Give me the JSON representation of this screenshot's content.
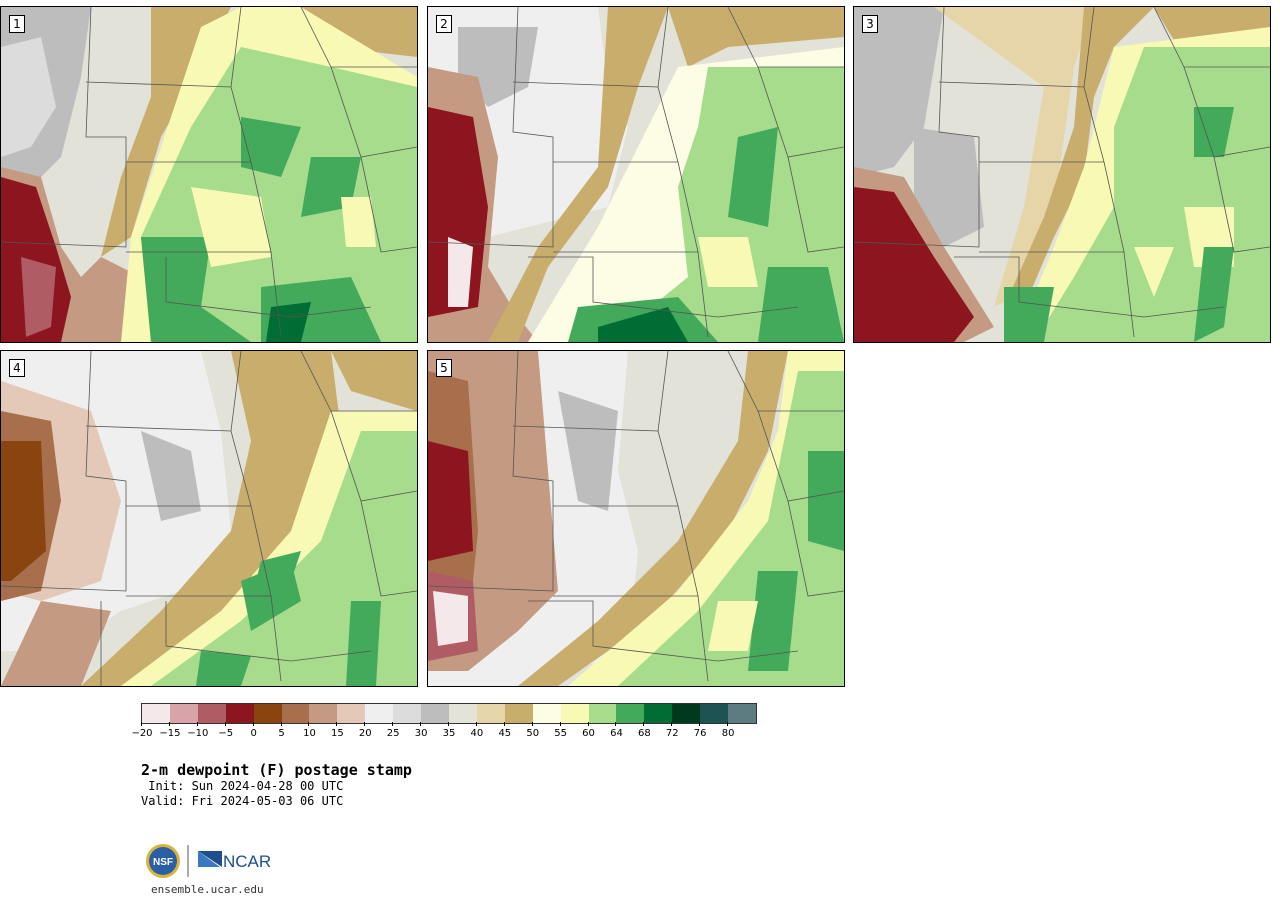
{
  "panels": [
    {
      "label": "1"
    },
    {
      "label": "2"
    },
    {
      "label": "3"
    },
    {
      "label": "4"
    },
    {
      "label": "5"
    }
  ],
  "colorbar": {
    "colors": [
      "#f5e8ea",
      "#d9a3aa",
      "#b05c65",
      "#8c1520",
      "#8a4410",
      "#a86f4c",
      "#c59a82",
      "#e4c9b8",
      "#efefef",
      "#dcdcdc",
      "#bdbdbd",
      "#e3e3d8",
      "#e6d5a8",
      "#c9ad6c",
      "#fdfde6",
      "#f7f9b4",
      "#a6dc8c",
      "#43a95b",
      "#006d35",
      "#00391d",
      "#1d5352",
      "#5d7c82"
    ],
    "tick_labels": [
      "−20",
      "−15",
      "−10",
      "−5",
      "0",
      "5",
      "10",
      "15",
      "20",
      "25",
      "30",
      "35",
      "40",
      "45",
      "50",
      "55",
      "60",
      "64",
      "68",
      "72",
      "76",
      "80"
    ]
  },
  "title": "2-m dewpoint (F) postage stamp",
  "init": " Init: Sun 2024-04-28 00 UTC",
  "valid": "Valid: Fri 2024-05-03 06 UTC",
  "logo_nsf": "NSF",
  "logo_ncar": "NCAR",
  "site": "ensemble.ucar.edu"
}
